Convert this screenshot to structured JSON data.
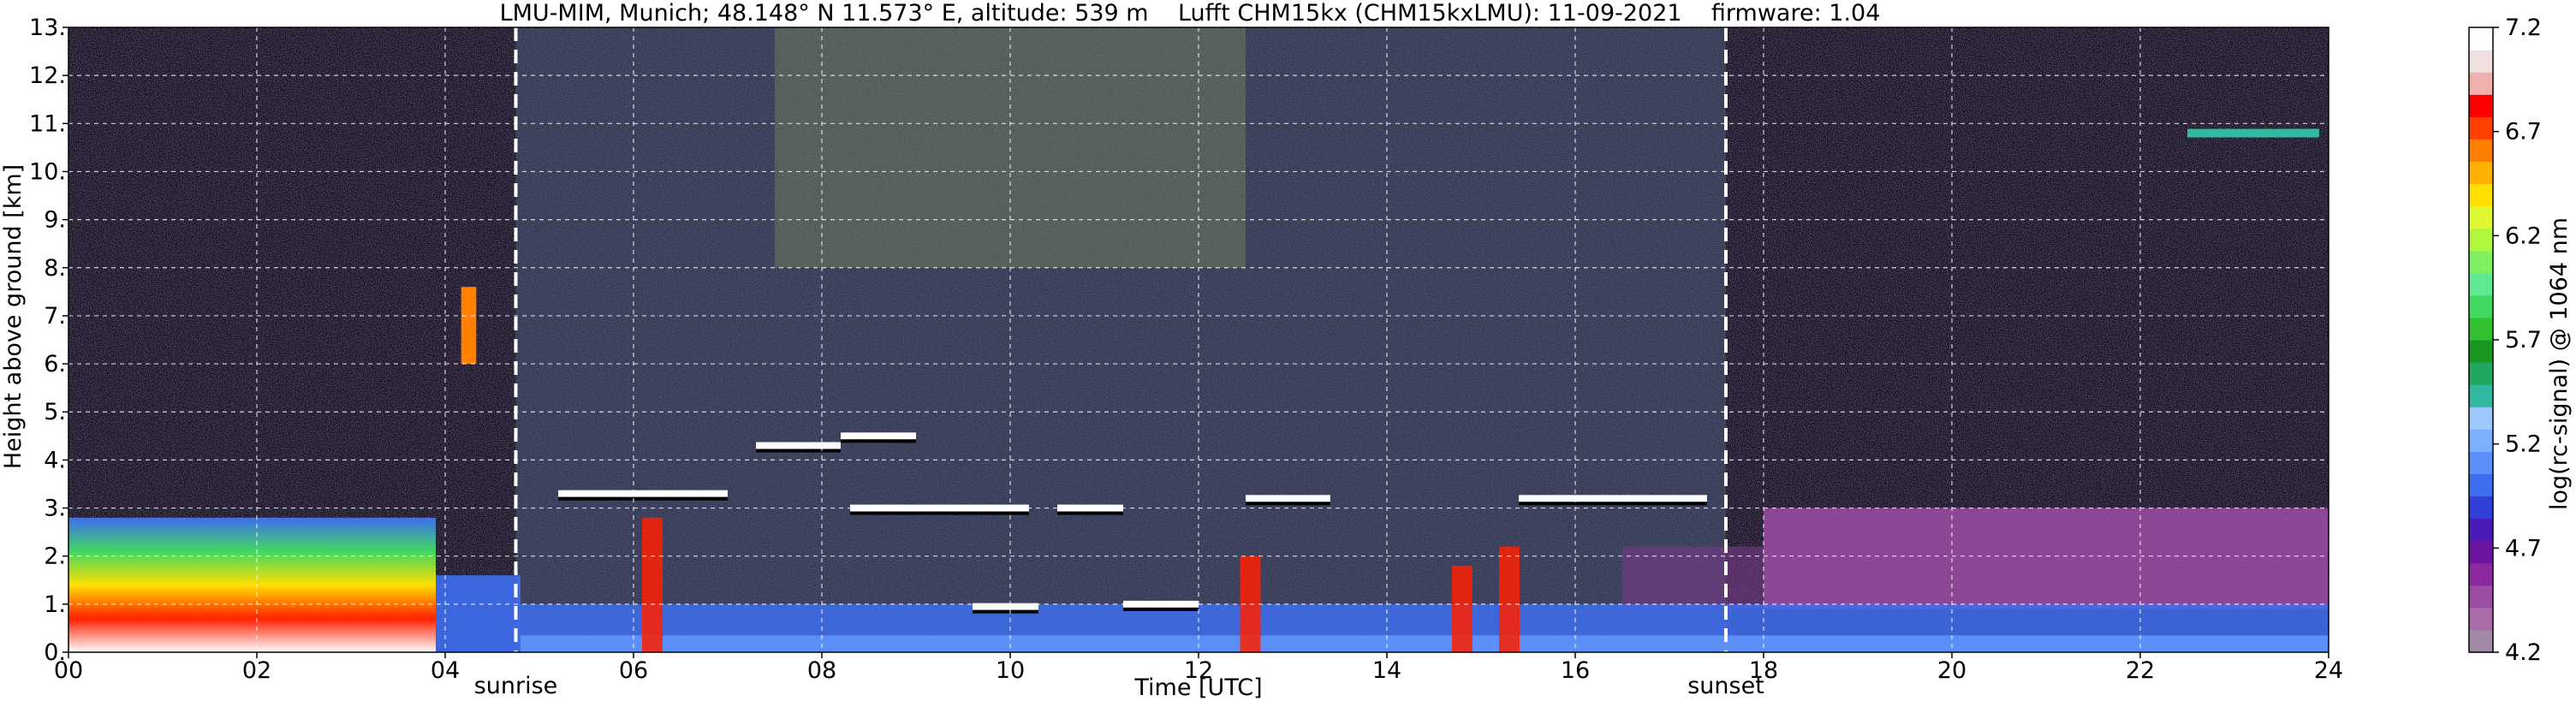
{
  "chart_data": {
    "type": "heatmap",
    "title": "LMU-MIM, Munich; 48.148° N 11.573° E, altitude: 539 m    Lufft CHM15kx (CHM15kxLMU): 11-09-2021    firmware: 1.04",
    "xlabel": "Time [UTC]",
    "ylabel": "Height above ground [km]",
    "colorbar_label": "log(rc-signal) @ 1064 nm",
    "xlim": [
      0,
      24
    ],
    "ylim": [
      0,
      13
    ],
    "x_ticks": [
      0,
      2,
      4,
      6,
      8,
      10,
      12,
      14,
      16,
      18,
      20,
      22,
      24
    ],
    "x_tick_labels": [
      "00",
      "02",
      "04",
      "06",
      "08",
      "10",
      "12",
      "14",
      "16",
      "18",
      "20",
      "22",
      "24"
    ],
    "y_ticks": [
      0,
      1,
      2,
      3,
      4,
      5,
      6,
      7,
      8,
      9,
      10,
      11,
      12,
      13
    ],
    "y_tick_labels": [
      "0.",
      "1.",
      "2.",
      "3.",
      "4.",
      "5.",
      "6.",
      "7.",
      "8.",
      "9.",
      "10.",
      "11.",
      "12.",
      "13."
    ],
    "grid": true,
    "colorbar_range": [
      4.2,
      7.2
    ],
    "colorbar_ticks": [
      4.2,
      4.7,
      5.2,
      5.7,
      6.2,
      6.7,
      7.2
    ],
    "colorbar_tick_labels": [
      "4.2",
      "4.7",
      "5.2",
      "5.7",
      "6.2",
      "6.7",
      "7.2"
    ],
    "colormap": [
      "#a08aa6",
      "#a86ca8",
      "#9c4ea4",
      "#8a2a9e",
      "#6a14a0",
      "#4a1ab8",
      "#3040d8",
      "#3e6ef0",
      "#5c90f8",
      "#7cb0fc",
      "#9cc8fc",
      "#30b8a0",
      "#20a860",
      "#189820",
      "#30c030",
      "#40d860",
      "#60e890",
      "#80f060",
      "#b0f840",
      "#e0f830",
      "#ffe000",
      "#ffb000",
      "#ff8000",
      "#ff4000",
      "#ff0000",
      "#f0b0b0",
      "#f0e0e0",
      "#ffffff"
    ],
    "events": [
      {
        "label": "sunrise",
        "time": 4.75
      },
      {
        "label": "sunset",
        "time": 17.6
      }
    ],
    "features": {
      "aerosol_layer_top_km": 3.0,
      "cloud_bases": [
        {
          "start": 5.2,
          "end": 7.0,
          "height_km": 3.3
        },
        {
          "start": 7.3,
          "end": 8.2,
          "height_km": 4.3
        },
        {
          "start": 8.2,
          "end": 9.0,
          "height_km": 4.5
        },
        {
          "start": 8.3,
          "end": 10.2,
          "height_km": 3.0
        },
        {
          "start": 10.5,
          "end": 11.2,
          "height_km": 3.0
        },
        {
          "start": 12.5,
          "end": 13.4,
          "height_km": 3.2
        },
        {
          "start": 15.4,
          "end": 17.4,
          "height_km": 3.2
        },
        {
          "start": 9.6,
          "end": 10.3,
          "height_km": 0.95
        },
        {
          "start": 11.2,
          "end": 12.0,
          "height_km": 1.0
        }
      ],
      "high_cloud": {
        "start": 22.5,
        "end": 23.9,
        "height_km": 10.8
      },
      "upper_cloud_0445": {
        "time": 4.25,
        "bottom_km": 6.0,
        "top_km": 7.6
      }
    }
  }
}
